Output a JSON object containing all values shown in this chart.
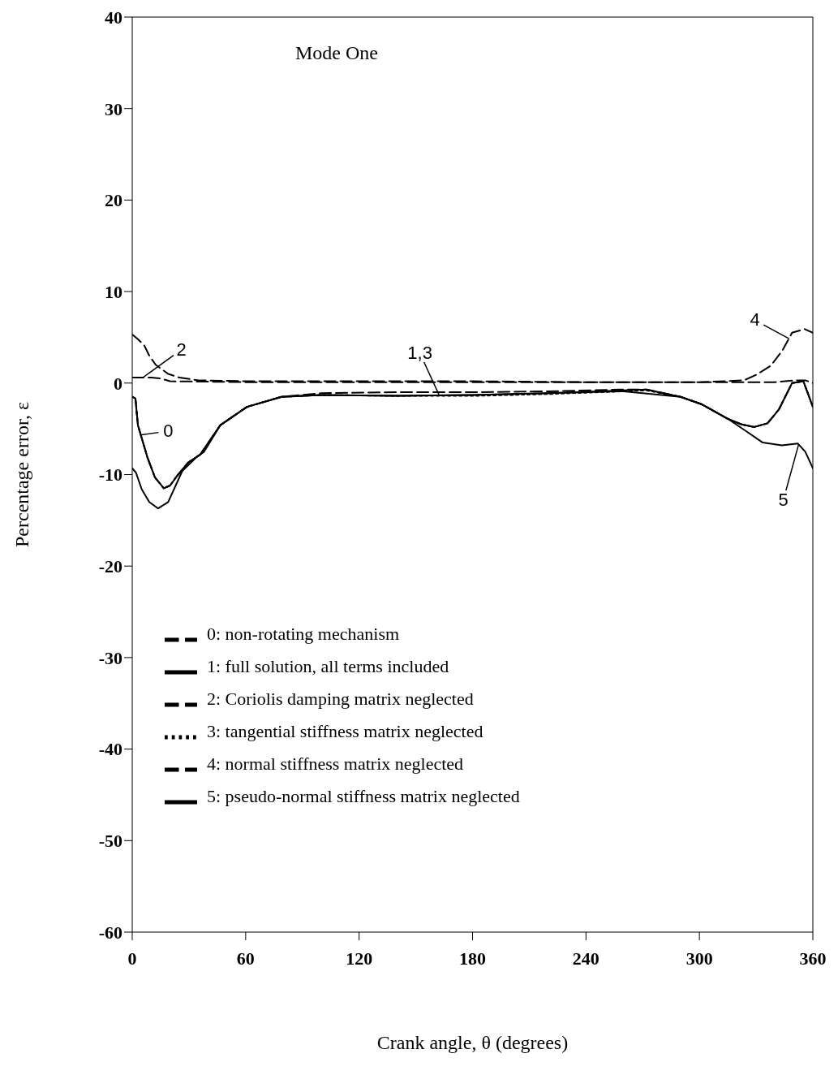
{
  "chart_data": {
    "type": "line",
    "title": null,
    "xlabel": "Crank          angle,    θ (degrees)",
    "ylabel": "Percentage          error,   ε",
    "xlim": [
      0,
      360
    ],
    "xticks": [
      0,
      60,
      120,
      180,
      240,
      300,
      360
    ],
    "ylim": [
      -60,
      40
    ],
    "yticks": [
      -60,
      -50,
      -40,
      -30,
      -20,
      -10,
      0,
      10,
      20,
      30,
      40
    ],
    "legend": "bottom left",
    "marker": "none",
    "series": [
      {
        "name": "0: non-rotating mechanism",
        "color": "#000000",
        "line_style": "dashed",
        "x": [
          0,
          1.7,
          3,
          8,
          12,
          16.7,
          20,
          23.5,
          29.5,
          36,
          46.6,
          60.7,
          79,
          100,
          140,
          180,
          220,
          260,
          272,
          290,
          301,
          315,
          322,
          329,
          336,
          342,
          349,
          355,
          360
        ],
        "values": [
          -1.5,
          -1.7,
          -4.6,
          -8.1,
          -10.3,
          -11.5,
          -11.2,
          -10.2,
          -8.7,
          -7.8,
          -4.6,
          -2.6,
          -1.5,
          -1.1,
          -1.0,
          -1.0,
          -0.9,
          -0.7,
          -0.7,
          -1.5,
          -2.3,
          -3.9,
          -4.5,
          -4.8,
          -4.4,
          -2.9,
          0,
          0.2,
          -2.6
        ]
      },
      {
        "name": "1: full solution, all terms included",
        "color": "#000000",
        "line_style": "solid",
        "x": [
          0,
          1.7,
          3,
          8,
          12,
          16.7,
          20,
          23.5,
          29.5,
          36,
          46.6,
          60.7,
          79,
          100,
          140,
          180,
          220,
          260,
          272,
          290,
          301,
          315,
          322,
          329,
          336,
          342,
          349,
          355,
          360
        ],
        "values": [
          -1.5,
          -1.7,
          -4.6,
          -8.1,
          -10.3,
          -11.5,
          -11.2,
          -10.2,
          -8.7,
          -7.8,
          -4.6,
          -2.6,
          -1.5,
          -1.3,
          -1.4,
          -1.3,
          -1.1,
          -0.8,
          -0.7,
          -1.5,
          -2.3,
          -3.9,
          -4.5,
          -4.8,
          -4.4,
          -2.9,
          0,
          0.2,
          -2.6
        ]
      },
      {
        "name": "2: Coriolis damping matrix neglected",
        "color": "#000000",
        "line_style": "dashed",
        "x": [
          0,
          5,
          10,
          15,
          20,
          60,
          120,
          180,
          240,
          300,
          340,
          350,
          356,
          360
        ],
        "values": [
          0.6,
          0.6,
          0.6,
          0.5,
          0.2,
          0.1,
          0.1,
          0.1,
          0.1,
          0.1,
          0.1,
          0.3,
          0.3,
          0
        ]
      },
      {
        "name": "3: tangential stiffness matrix neglected",
        "color": "#000000",
        "line_style": "dotted",
        "x": [
          0,
          1.7,
          3,
          8,
          12,
          16.7,
          20,
          23.5,
          29.5,
          36,
          46.6,
          60.7,
          79,
          100,
          140,
          180,
          220,
          260,
          272,
          290,
          301,
          315,
          322,
          329,
          336,
          342,
          349,
          355,
          360
        ],
        "values": [
          -1.5,
          -1.7,
          -4.6,
          -8.1,
          -10.3,
          -11.5,
          -11.2,
          -10.2,
          -8.7,
          -7.8,
          -4.6,
          -2.6,
          -1.5,
          -1.3,
          -1.4,
          -1.4,
          -1.2,
          -0.9,
          -0.8,
          -1.5,
          -2.3,
          -3.9,
          -4.5,
          -4.8,
          -4.4,
          -2.9,
          0,
          0.2,
          -2.6
        ]
      },
      {
        "name": "4: normal stiffness matrix neglected",
        "color": "#000000",
        "line_style": "dashed",
        "x": [
          0,
          3,
          6.4,
          9,
          12.4,
          19,
          25,
          35,
          60,
          120,
          180,
          240,
          300,
          323.6,
          330,
          337.8,
          344,
          349,
          355.7,
          360
        ],
        "values": [
          5.3,
          4.8,
          4.1,
          3.0,
          2.0,
          1.0,
          0.6,
          0.3,
          0.2,
          0.2,
          0.2,
          0.1,
          0.1,
          0.3,
          0.9,
          1.9,
          3.6,
          5.5,
          5.9,
          5.5
        ]
      },
      {
        "name": "5: pseudo-normal stiffness matrix neglected",
        "color": "#000000",
        "line_style": "solid",
        "x": [
          0,
          2,
          5,
          9,
          13.7,
          19,
          26.5,
          34,
          38,
          46.6,
          60.7,
          79,
          100,
          140,
          180,
          220,
          260,
          290,
          301,
          315,
          325,
          333.5,
          343.6,
          352,
          356,
          360
        ],
        "values": [
          -9.3,
          -9.8,
          -11.6,
          -13,
          -13.7,
          -13,
          -9.6,
          -8.1,
          -7.5,
          -4.6,
          -2.6,
          -1.5,
          -1.3,
          -1.4,
          -1.3,
          -1.1,
          -0.9,
          -1.5,
          -2.3,
          -3.9,
          -5.3,
          -6.5,
          -6.8,
          -6.6,
          -7.5,
          -9.3
        ]
      }
    ],
    "annotations": [
      "Mode One",
      {
        "text": "0",
        "x": 5,
        "y": -5.7
      },
      {
        "text": "1,3",
        "x": 162,
        "y": -1.3
      },
      {
        "text": "2",
        "x": 6,
        "y": 0.6
      },
      {
        "text": "4",
        "x": 347,
        "y": 4.8
      },
      {
        "text": "5",
        "x": 352,
        "y": -6.8
      }
    ]
  }
}
